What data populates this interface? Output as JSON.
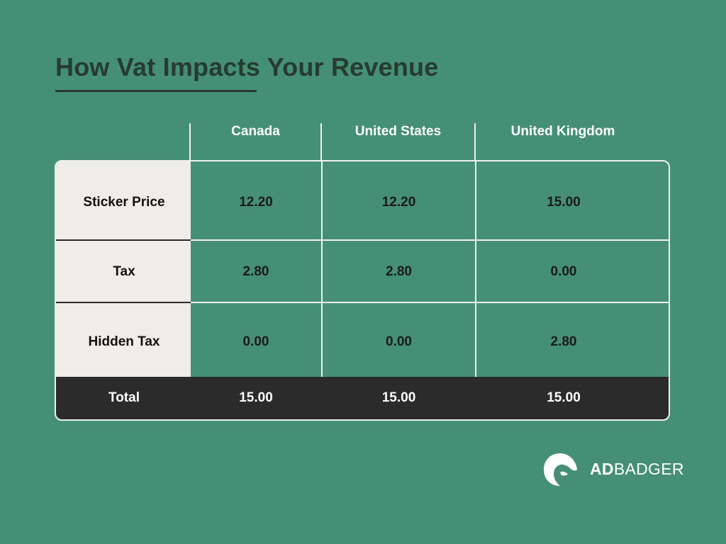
{
  "title": "How Vat Impacts Your Revenue",
  "columns": [
    "Canada",
    "United States",
    "United Kingdom"
  ],
  "rows": [
    {
      "label": "Sticker Price",
      "values": [
        "12.20",
        "12.20",
        "15.00"
      ]
    },
    {
      "label": "Tax",
      "values": [
        "2.80",
        "2.80",
        "0.00"
      ]
    },
    {
      "label": "Hidden Tax",
      "values": [
        "0.00",
        "0.00",
        "2.80"
      ]
    }
  ],
  "total": {
    "label": "Total",
    "values": [
      "15.00",
      "15.00",
      "15.00"
    ]
  },
  "logo": {
    "part1": "AD",
    "part2": "BADGER",
    "icon": "badger-icon"
  },
  "colors": {
    "background": "#448f76",
    "header_cell": "#eeede9",
    "total_bar": "#2b2b2b",
    "title": "#263b32"
  }
}
